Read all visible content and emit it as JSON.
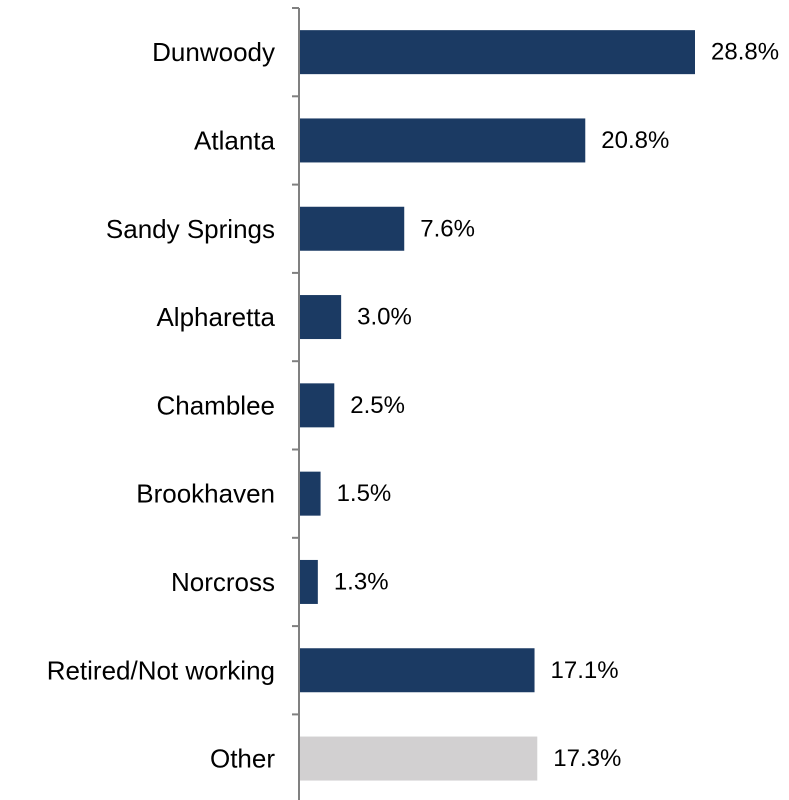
{
  "chart_data": {
    "type": "bar",
    "orientation": "horizontal",
    "categories": [
      "Dunwoody",
      "Atlanta",
      "Sandy Springs",
      "Alpharetta",
      "Chamblee",
      "Brookhaven",
      "Norcross",
      "Retired/Not working",
      "Other"
    ],
    "values": [
      28.8,
      20.8,
      7.6,
      3.0,
      2.5,
      1.5,
      1.3,
      17.1,
      17.3
    ],
    "value_labels": [
      "28.8%",
      "20.8%",
      "7.6%",
      "3.0%",
      "2.5%",
      "1.5%",
      "1.3%",
      "17.1%",
      "17.3%"
    ],
    "bar_colors": [
      "#1b3a63",
      "#1b3a63",
      "#1b3a63",
      "#1b3a63",
      "#1b3a63",
      "#1b3a63",
      "#1b3a63",
      "#1b3a63",
      "#d2d0d1"
    ],
    "title": "",
    "xlabel": "",
    "ylabel": "",
    "xlim": [
      0,
      28.8
    ],
    "grid": false,
    "legend": "none"
  }
}
